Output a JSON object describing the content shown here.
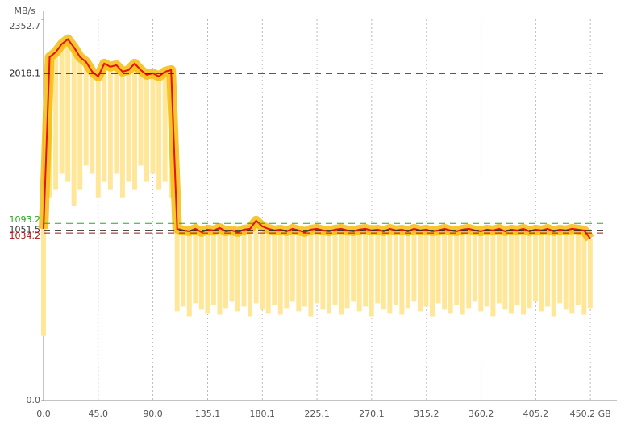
{
  "chart_data": {
    "type": "line",
    "y_label": "MB/s",
    "x": [
      0,
      5,
      10,
      15,
      20,
      25,
      30,
      35,
      40,
      45,
      50,
      55,
      60,
      65,
      70,
      75,
      80,
      85,
      90,
      95,
      100,
      105,
      110,
      115,
      120,
      125,
      130,
      135,
      140,
      145,
      150,
      155,
      160,
      165,
      170,
      175,
      180,
      185,
      190,
      195,
      200,
      205,
      210,
      215,
      220,
      225,
      230,
      235,
      240,
      245,
      250,
      255,
      260,
      265,
      270,
      275,
      280,
      285,
      290,
      295,
      300,
      305,
      310,
      315,
      320,
      325,
      330,
      335,
      340,
      345,
      350,
      355,
      360,
      365,
      370,
      375,
      380,
      385,
      390,
      395,
      400,
      405,
      410,
      415,
      420,
      425,
      430,
      435,
      440,
      445,
      450
    ],
    "series": [
      {
        "color": "#ffe79a",
        "values": [
          400,
          1250,
          1300,
          1400,
          1350,
          1200,
          1300,
          1450,
          1400,
          1250,
          1350,
          1300,
          1400,
          1250,
          1350,
          1300,
          1450,
          1350,
          1400,
          1300,
          1350,
          1250,
          550,
          580,
          520,
          600,
          560,
          540,
          590,
          530,
          570,
          610,
          550,
          580,
          520,
          600,
          560,
          540,
          590,
          530,
          570,
          610,
          550,
          580,
          520,
          600,
          560,
          540,
          590,
          530,
          570,
          610,
          550,
          580,
          520,
          600,
          560,
          540,
          590,
          530,
          570,
          610,
          550,
          580,
          520,
          600,
          560,
          540,
          590,
          530,
          570,
          610,
          550,
          580,
          520,
          600,
          560,
          540,
          590,
          530,
          570,
          610,
          550,
          580,
          520,
          600,
          560,
          540,
          590,
          530,
          570
        ]
      },
      {
        "color": "#e8120c",
        "values": [
          1060,
          2120,
          2150,
          2200,
          2230,
          2180,
          2120,
          2090,
          2030,
          2000,
          2080,
          2060,
          2070,
          2030,
          2040,
          2080,
          2040,
          2010,
          2020,
          2000,
          2030,
          2040,
          1060,
          1050,
          1045,
          1060,
          1040,
          1055,
          1050,
          1065,
          1045,
          1050,
          1040,
          1055,
          1060,
          1110,
          1075,
          1060,
          1050,
          1055,
          1045,
          1060,
          1050,
          1040,
          1055,
          1060,
          1050,
          1045,
          1055,
          1060,
          1050,
          1045,
          1055,
          1060,
          1050,
          1055,
          1045,
          1060,
          1050,
          1055,
          1045,
          1060,
          1050,
          1055,
          1045,
          1050,
          1060,
          1050,
          1045,
          1055,
          1060,
          1050,
          1045,
          1055,
          1050,
          1060,
          1045,
          1055,
          1050,
          1060,
          1045,
          1055,
          1050,
          1060,
          1045,
          1055,
          1050,
          1060,
          1055,
          1050,
          1000
        ]
      }
    ],
    "reference_lines": [
      {
        "value": 2018.1,
        "color": "#222222"
      },
      {
        "value": 1093.2,
        "color": "#22aa22"
      },
      {
        "value": 1051.5,
        "color": "#333333"
      },
      {
        "value": 1034.2,
        "color": "#aa1111"
      }
    ],
    "xlim": [
      0,
      472
    ],
    "ylim": [
      0,
      2352.7
    ],
    "xticks": [
      {
        "value": 0,
        "label": "0.0"
      },
      {
        "value": 45,
        "label": "45.0"
      },
      {
        "value": 90,
        "label": "90.0"
      },
      135.1,
      180.1,
      225.1,
      270.1,
      315.2,
      360.2,
      405.2,
      {
        "value": 450.2,
        "label": "450.2 GB"
      }
    ],
    "yticks": [
      {
        "value": 0,
        "label": "0.0"
      },
      2352.7
    ],
    "grid": true
  }
}
